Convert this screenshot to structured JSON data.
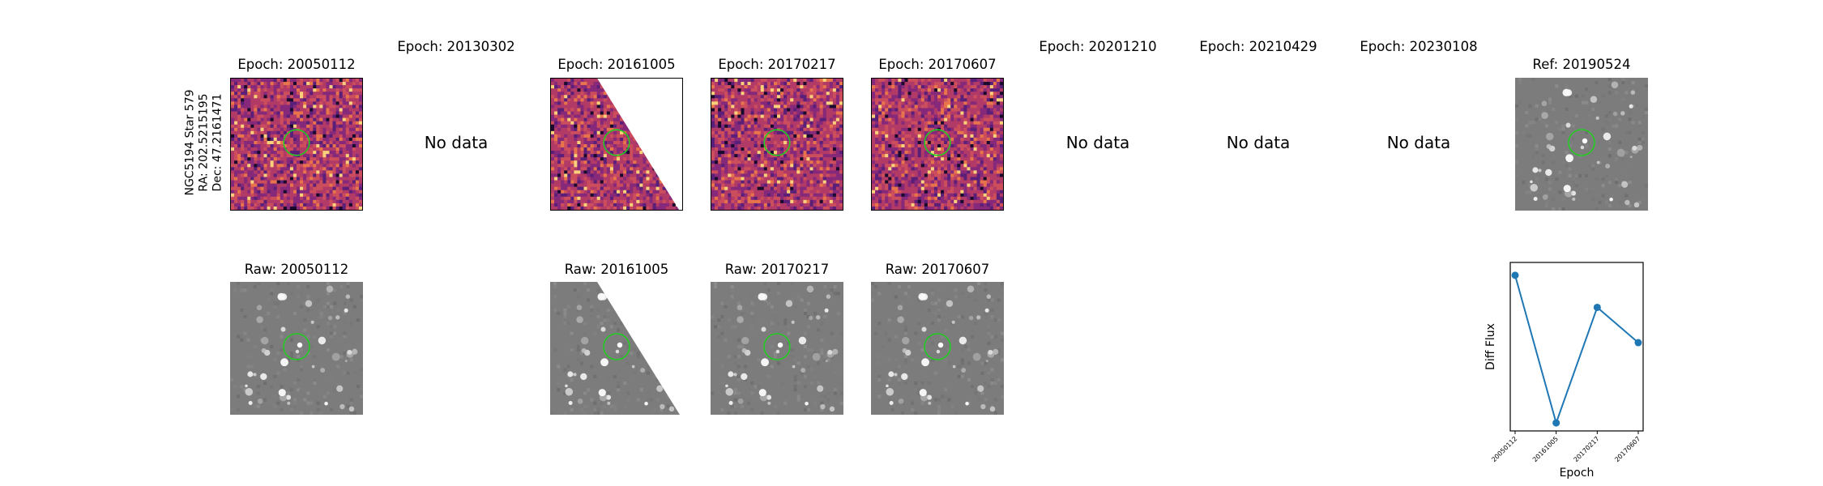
{
  "star_label": {
    "line1": "NGC5194 Star 579",
    "line2": "RA: 202.5215195",
    "line3": "Dec: 47.2161471"
  },
  "epochs": [
    {
      "title": "Epoch: 20050112",
      "status": "data",
      "raw_title": "Raw: 20050112"
    },
    {
      "title": "Epoch: 20130302",
      "status": "No data",
      "raw_title": ""
    },
    {
      "title": "Epoch: 20161005",
      "status": "data",
      "raw_title": "Raw: 20161005"
    },
    {
      "title": "Epoch: 20170217",
      "status": "data",
      "raw_title": "Raw: 20170217"
    },
    {
      "title": "Epoch: 20170607",
      "status": "data",
      "raw_title": "Raw: 20170607"
    },
    {
      "title": "Epoch: 20201210",
      "status": "No data",
      "raw_title": ""
    },
    {
      "title": "Epoch: 20210429",
      "status": "No data",
      "raw_title": ""
    },
    {
      "title": "Epoch: 20230108",
      "status": "No data",
      "raw_title": ""
    }
  ],
  "reference": {
    "title": "Ref: 20190524"
  },
  "colors": {
    "marker_circle": "#22cc22",
    "series": "#1f77b4",
    "raw_background": "#7a7a7a",
    "diff_background": "#a0306e"
  },
  "chart_data": {
    "type": "line",
    "title": "",
    "xlabel": "Epoch",
    "ylabel": "Diff Flux",
    "categories": [
      "20050112",
      "20161005",
      "20170217",
      "20170607"
    ],
    "values": [
      0.92,
      0.0,
      0.72,
      0.5
    ],
    "ylim": [
      -0.05,
      1.0
    ],
    "yticks_visible": false,
    "grid": false
  }
}
